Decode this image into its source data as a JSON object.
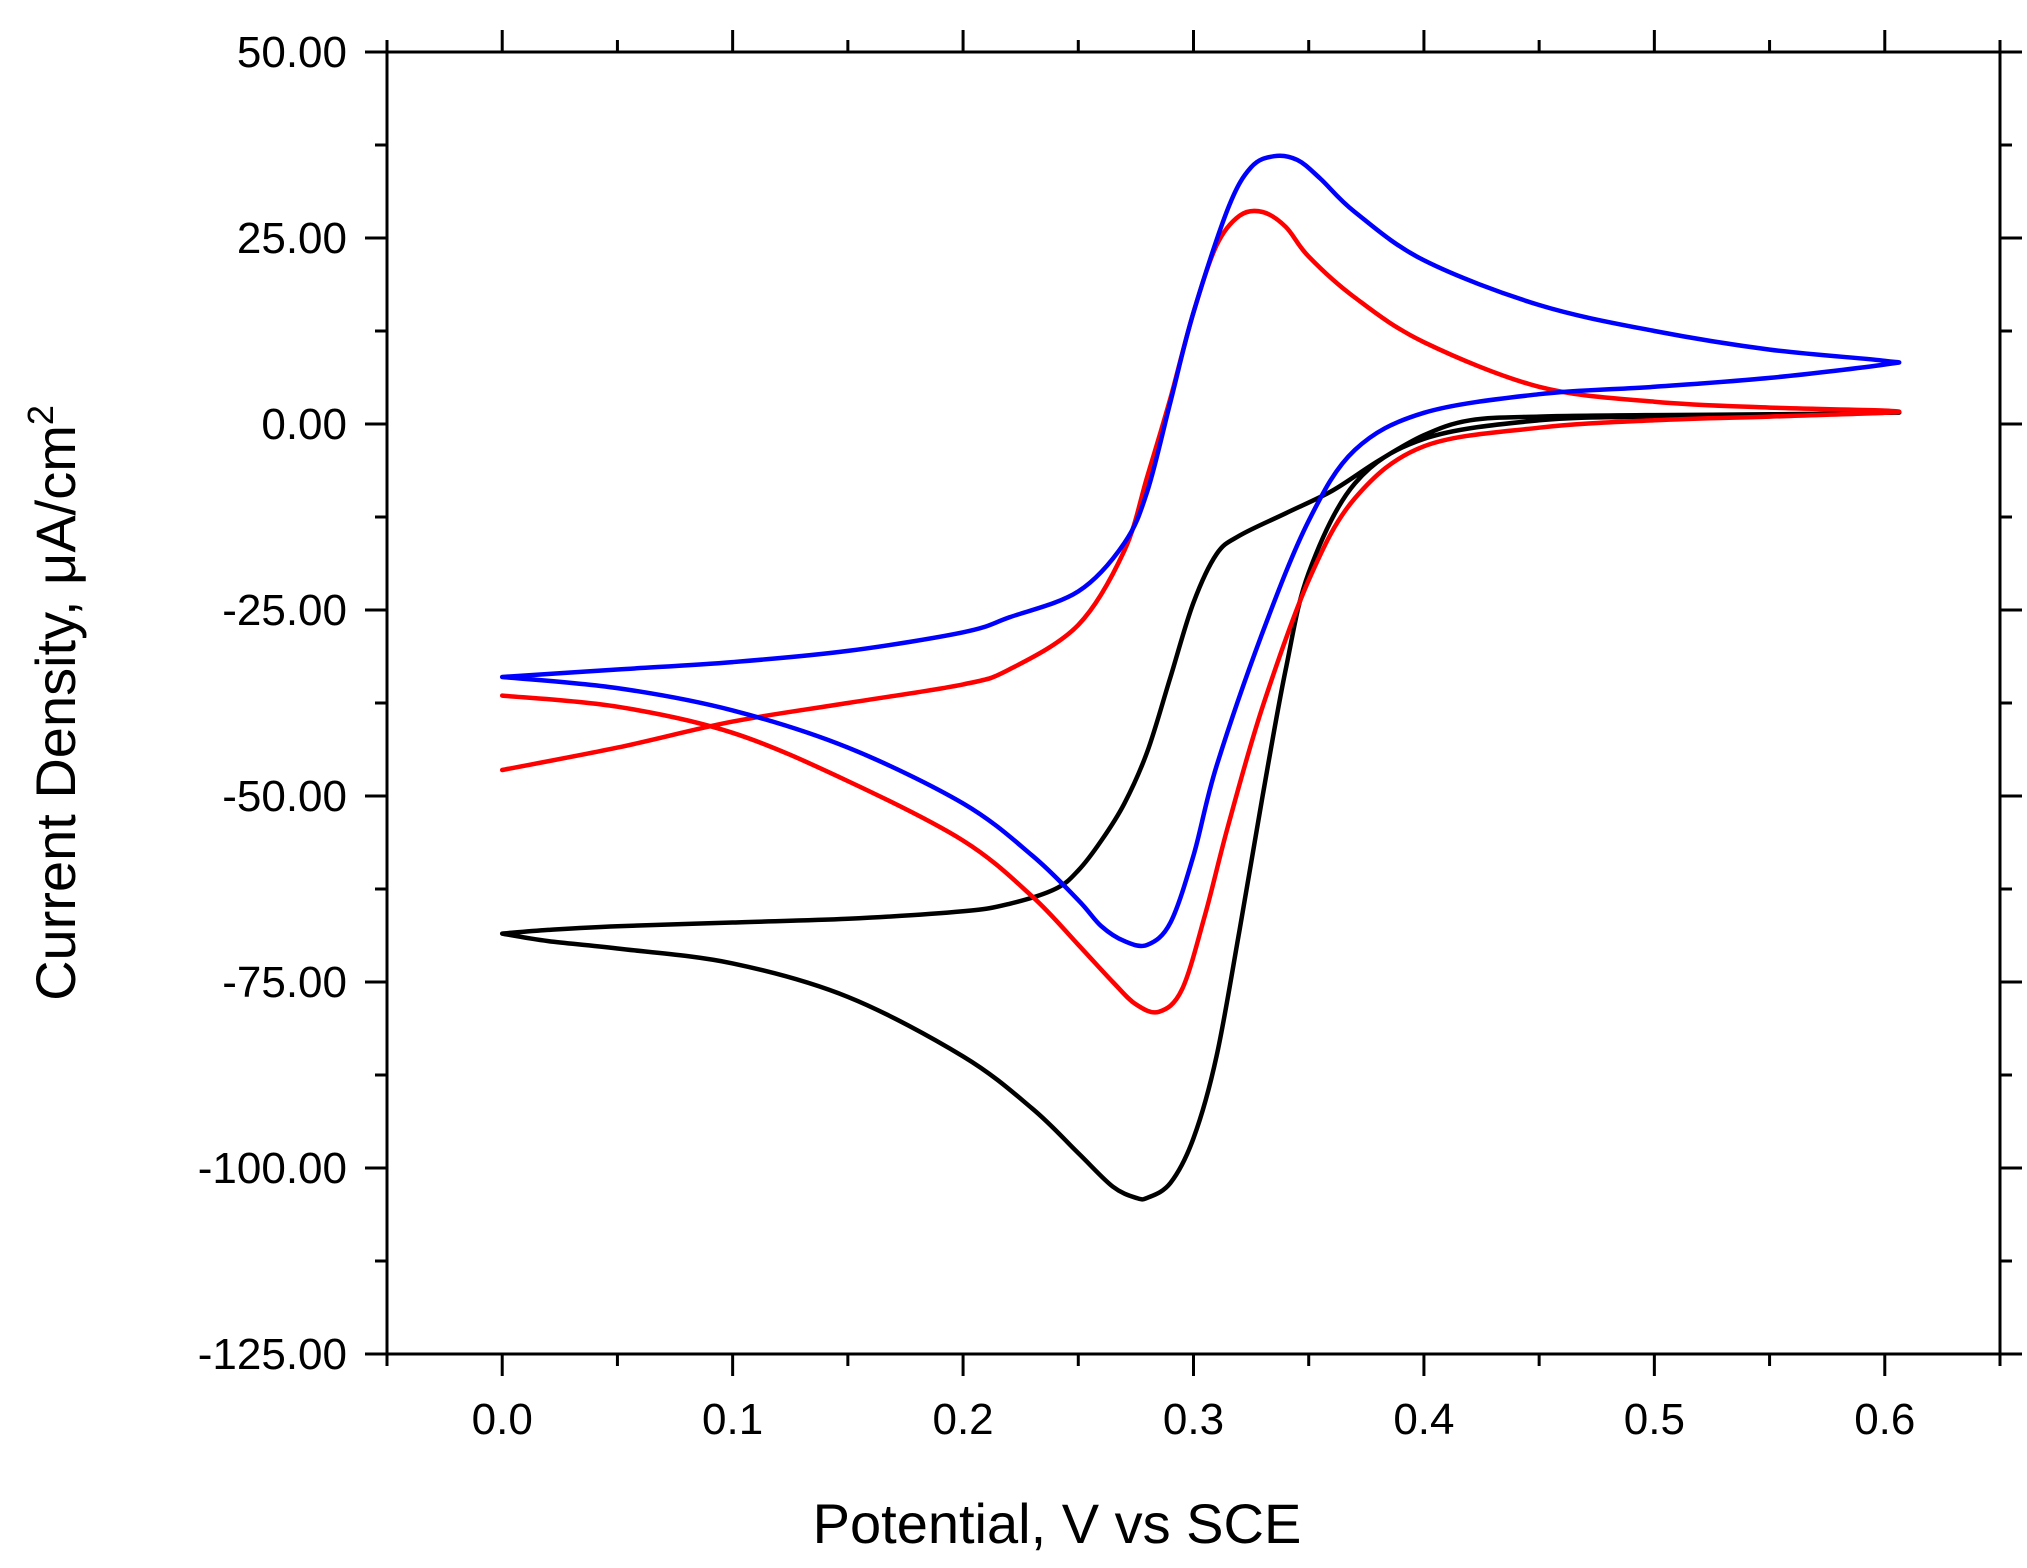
{
  "chart_data": {
    "type": "line",
    "title": "",
    "xlabel": "Potential, V vs SCE",
    "ylabel_main": "Current Density, μA/cm",
    "ylabel_sup": "2",
    "xlim": [
      -0.05,
      0.65
    ],
    "ylim": [
      -125,
      50
    ],
    "x_ticks": [
      0.0,
      0.1,
      0.2,
      0.3,
      0.4,
      0.5,
      0.6
    ],
    "x_tick_labels": [
      "0.0",
      "0.1",
      "0.2",
      "0.3",
      "0.4",
      "0.5",
      "0.6"
    ],
    "y_ticks": [
      50,
      25,
      0,
      -25,
      -50,
      -75,
      -100,
      -125
    ],
    "y_tick_labels": [
      "50.00",
      "25.00",
      "0.00",
      "-25.00",
      "-50.00",
      "-75.00",
      "-100.00",
      "-125.00"
    ],
    "grid": false,
    "legend": "none",
    "series": [
      {
        "name": "black",
        "color": "#000000",
        "x": [
          0.0,
          0.02,
          0.05,
          0.1,
          0.15,
          0.2,
          0.23,
          0.25,
          0.265,
          0.275,
          0.28,
          0.29,
          0.3,
          0.31,
          0.32,
          0.33,
          0.34,
          0.35,
          0.37,
          0.4,
          0.45,
          0.5,
          0.55,
          0.6,
          0.6,
          0.55,
          0.5,
          0.45,
          0.42,
          0.4,
          0.38,
          0.36,
          0.34,
          0.32,
          0.31,
          0.3,
          0.29,
          0.28,
          0.27,
          0.26,
          0.25,
          0.24,
          0.22,
          0.2,
          0.15,
          0.1,
          0.05,
          0.02,
          0.0
        ],
        "y": [
          -68.5,
          -69.5,
          -70.5,
          -72.5,
          -77,
          -85,
          -92,
          -98,
          -102.5,
          -104,
          -104,
          -102,
          -96,
          -85,
          -68,
          -50,
          -33,
          -20,
          -8,
          -2,
          0.5,
          1,
          1.2,
          1.5,
          1.5,
          1.3,
          1.2,
          1.0,
          0.5,
          -1.5,
          -5,
          -9,
          -12,
          -15,
          -17.5,
          -24,
          -34,
          -44,
          -51,
          -56,
          -60,
          -62.5,
          -64.5,
          -65.5,
          -66.5,
          -67,
          -67.5,
          -68,
          -68.5
        ]
      },
      {
        "name": "red",
        "color": "#ff0000",
        "x": [
          0.0,
          0.05,
          0.1,
          0.15,
          0.2,
          0.23,
          0.25,
          0.265,
          0.275,
          0.285,
          0.295,
          0.305,
          0.315,
          0.33,
          0.35,
          0.37,
          0.4,
          0.45,
          0.5,
          0.55,
          0.6,
          0.6,
          0.55,
          0.5,
          0.45,
          0.4,
          0.37,
          0.35,
          0.34,
          0.33,
          0.32,
          0.31,
          0.3,
          0.29,
          0.28,
          0.27,
          0.25,
          0.22,
          0.2,
          0.15,
          0.1,
          0.05,
          0.0
        ],
        "y": [
          -36.5,
          -38,
          -41.5,
          -48,
          -56,
          -63.5,
          -70,
          -75,
          -78,
          -79,
          -76,
          -66,
          -54,
          -38,
          -21,
          -10,
          -3,
          -0.5,
          0.5,
          1,
          1.5,
          1.8,
          2.2,
          3,
          5,
          11,
          17,
          22.5,
          26.5,
          28.5,
          28,
          24,
          15,
          3.5,
          -7,
          -17,
          -27,
          -33,
          -35,
          -37.5,
          -40,
          -43.5,
          -46.5
        ]
      },
      {
        "name": "blue",
        "color": "#0000ff",
        "x": [
          0.0,
          0.05,
          0.1,
          0.15,
          0.2,
          0.23,
          0.25,
          0.26,
          0.27,
          0.28,
          0.29,
          0.3,
          0.31,
          0.33,
          0.35,
          0.37,
          0.4,
          0.45,
          0.5,
          0.55,
          0.6,
          0.6,
          0.55,
          0.5,
          0.45,
          0.4,
          0.37,
          0.355,
          0.345,
          0.335,
          0.325,
          0.315,
          0.3,
          0.29,
          0.28,
          0.27,
          0.25,
          0.22,
          0.2,
          0.15,
          0.1,
          0.05,
          0.0
        ],
        "y": [
          -34,
          -35.5,
          -38.5,
          -43.5,
          -51,
          -58,
          -64,
          -67.5,
          -69.5,
          -70,
          -67,
          -58,
          -46,
          -28,
          -13,
          -3.5,
          1.5,
          4,
          5,
          6.2,
          8,
          8.5,
          10,
          12.5,
          16,
          22,
          28.5,
          33,
          35.5,
          36,
          34.5,
          29,
          15,
          3,
          -9,
          -16,
          -22.5,
          -26,
          -28,
          -30.5,
          -32,
          -33,
          -34
        ]
      }
    ]
  }
}
